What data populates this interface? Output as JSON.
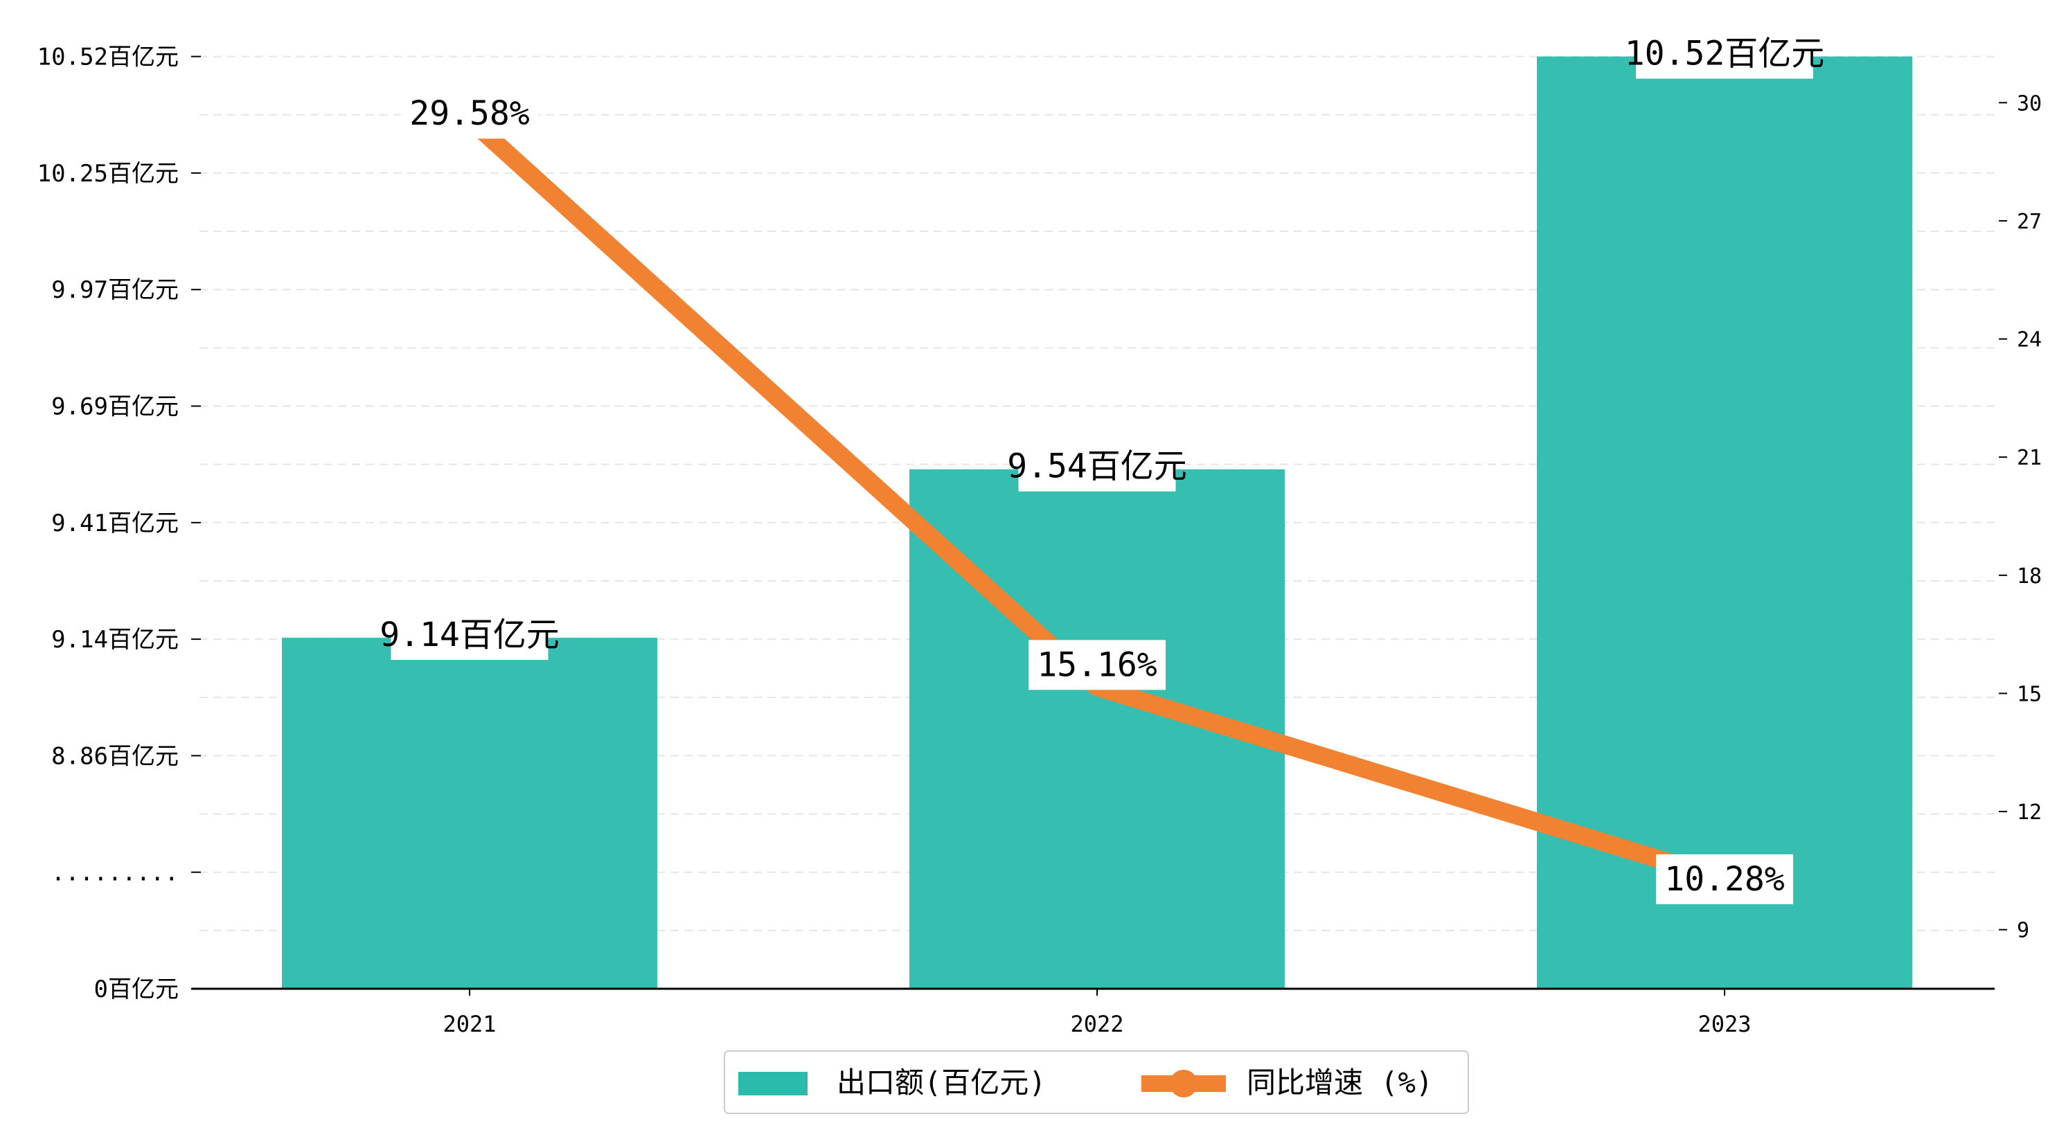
{
  "chart_data": {
    "type": "bar",
    "categories": [
      "2021",
      "2022",
      "2023"
    ],
    "series": [
      {
        "name": "出口额(百亿元)",
        "type": "bar",
        "axis": "left",
        "color": "#2bbbad",
        "values": [
          9.14,
          9.54,
          10.52
        ],
        "labels": [
          "9.14百亿元",
          "9.54百亿元",
          "10.52百亿元"
        ]
      },
      {
        "name": "同比增速 (%)",
        "type": "line",
        "axis": "right",
        "color": "#f08232",
        "values": [
          29.58,
          15.16,
          10.28
        ],
        "labels": [
          "29.58%",
          "15.16%",
          "10.28%"
        ]
      }
    ],
    "y_left": {
      "ticks": [
        {
          "label": "0百亿元"
        },
        {
          "label": "........."
        },
        {
          "label": "8.86百亿元",
          "value": 8.86
        },
        {
          "label": "9.14百亿元",
          "value": 9.14
        },
        {
          "label": "9.41百亿元",
          "value": 9.41
        },
        {
          "label": "9.69百亿元",
          "value": 9.69
        },
        {
          "label": "9.97百亿元",
          "value": 9.97
        },
        {
          "label": "10.25百亿元",
          "value": 10.25
        },
        {
          "label": "10.52百亿元",
          "value": 10.52
        }
      ],
      "broken_axis": true
    },
    "y_right": {
      "range": [
        7.5,
        31.5
      ],
      "ticks": [
        9,
        12,
        15,
        18,
        21,
        24,
        27,
        30
      ]
    },
    "grid": "horizontal-dashed",
    "legend_position": "bottom-center"
  }
}
